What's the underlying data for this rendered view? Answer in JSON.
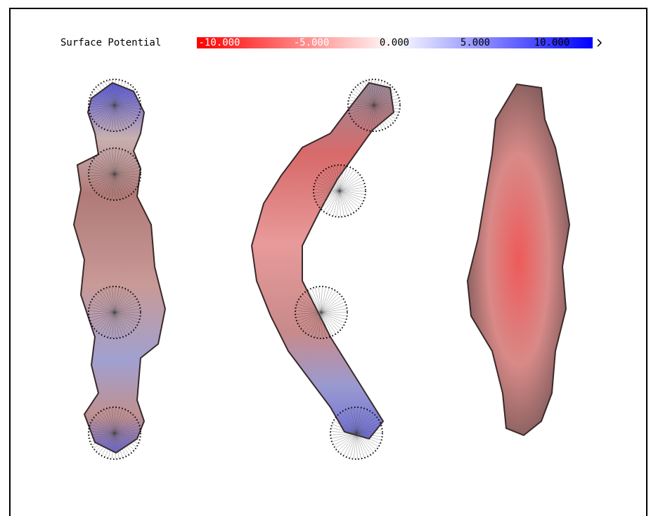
{
  "legend": {
    "title": "Surface Potential",
    "tick_labels": [
      "-10.000",
      "-5.000",
      "0.000",
      "5.000",
      "10.000"
    ]
  }
}
